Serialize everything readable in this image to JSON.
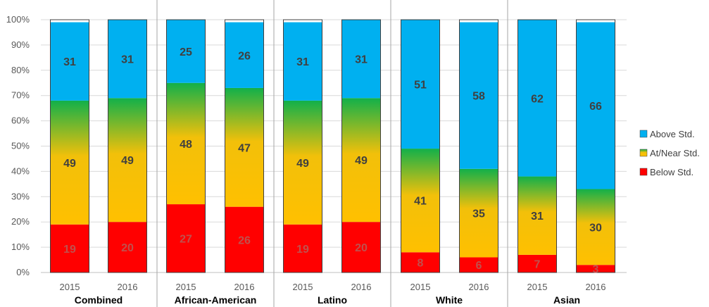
{
  "chart_data": {
    "type": "bar",
    "stacked": true,
    "percent": true,
    "groups": [
      {
        "label": "Combined",
        "years": [
          "2015",
          "2016"
        ]
      },
      {
        "label": "African-American",
        "years": [
          "2015",
          "2016"
        ]
      },
      {
        "label": "Latino",
        "years": [
          "2015",
          "2016"
        ]
      },
      {
        "label": "White",
        "years": [
          "2015",
          "2016"
        ]
      },
      {
        "label": "Asian",
        "years": [
          "2015",
          "2016"
        ]
      }
    ],
    "categories": [
      "Combined 2015",
      "Combined 2016",
      "African-American 2015",
      "African-American 2016",
      "Latino 2015",
      "Latino 2016",
      "White 2015",
      "White 2016",
      "Asian 2015",
      "Asian 2016"
    ],
    "series": [
      {
        "name": "Below Std.",
        "color": "#ff0000",
        "values": [
          19,
          20,
          27,
          26,
          19,
          20,
          8,
          6,
          7,
          3
        ]
      },
      {
        "name": "At/Near Std.",
        "color": "gradient-yellow-green",
        "values": [
          49,
          49,
          48,
          47,
          49,
          49,
          41,
          35,
          31,
          30
        ]
      },
      {
        "name": "Above Std.",
        "color": "#00b0f0",
        "values": [
          31,
          31,
          25,
          26,
          31,
          31,
          51,
          58,
          62,
          66
        ]
      }
    ],
    "yticks": [
      "0%",
      "10%",
      "20%",
      "30%",
      "40%",
      "50%",
      "60%",
      "70%",
      "80%",
      "90%",
      "100%"
    ],
    "ylim": [
      0,
      100
    ],
    "legend": {
      "position": "right",
      "entries": [
        "Above Std.",
        "At/Near Std.",
        "Below Std."
      ]
    },
    "grid": true
  }
}
